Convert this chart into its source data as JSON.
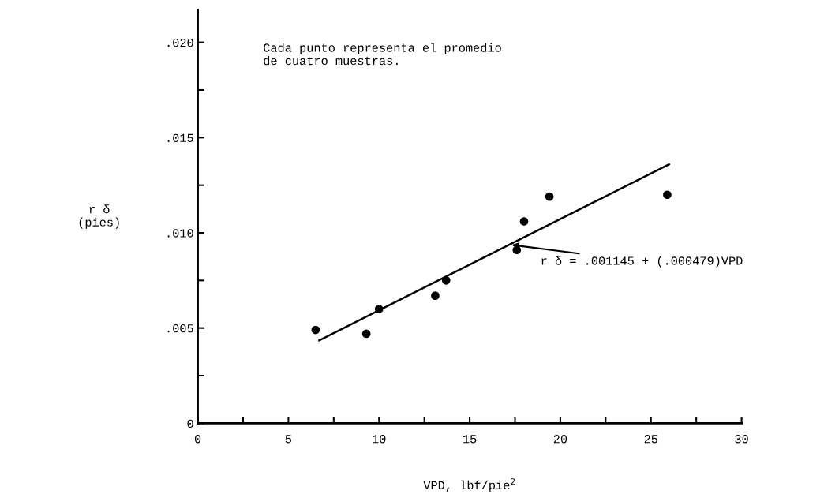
{
  "chart_data": {
    "type": "scatter",
    "xlabel": "VPD, lbf/pie$^{2}$",
    "ylabel": "r δ\n(pies)",
    "x": [
      6.5,
      9.3,
      10.0,
      13.1,
      13.7,
      17.6,
      18.0,
      19.4,
      25.9
    ],
    "series": [
      {
        "color": "#000000",
        "marker": "circle",
        "values": [
          0.0049,
          0.0047,
          0.006,
          0.0067,
          0.0075,
          0.0091,
          0.0106,
          0.0119,
          0.012
        ]
      },
      {
        "type": "line",
        "color": "#000000",
        "marker": "none",
        "line_style": "solid",
        "x": [
          6.7,
          26.0
        ],
        "values": [
          0.00435,
          0.0136
        ]
      }
    ],
    "xlim": [
      0,
      30
    ],
    "ylim": [
      0,
      0.0217
    ],
    "xticks": [
      0,
      {
        "value": 2.5,
        "label": null
      },
      5,
      {
        "value": 7.5,
        "label": null
      },
      10,
      {
        "value": 12.5,
        "label": null
      },
      15,
      {
        "value": 17.5,
        "label": null
      },
      20,
      {
        "value": 22.5,
        "label": null
      },
      25,
      {
        "value": 27.5,
        "label": null
      },
      30
    ],
    "yticks": [
      {
        "value": 0,
        "label": "0"
      },
      {
        "value": 0.0025,
        "label": null
      },
      {
        "value": 0.005,
        "label": ".005"
      },
      {
        "value": 0.0075,
        "label": null
      },
      {
        "value": 0.01,
        "label": ".010"
      },
      {
        "value": 0.0125,
        "label": null
      },
      {
        "value": 0.015,
        "label": ".015"
      },
      {
        "value": 0.0175,
        "label": null
      },
      {
        "value": 0.02,
        "label": ".020"
      }
    ],
    "grid": false,
    "annotations": [
      "Cada punto representa el promedio\nde cuatro muestras.",
      {
        "text": "r δ = .001145 + (.000479)VPD",
        "x": 17.2,
        "y": 0.00938
      }
    ]
  }
}
